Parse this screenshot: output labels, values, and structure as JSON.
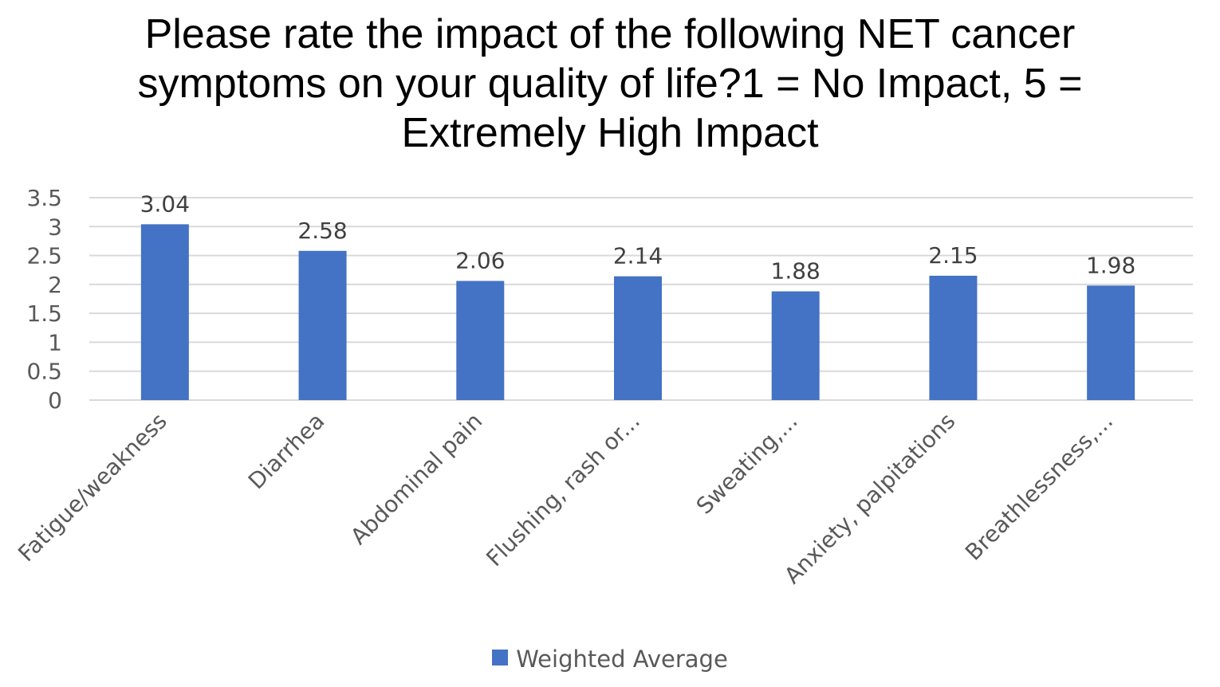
{
  "chart_data": {
    "type": "bar",
    "title": "Please rate the impact of the following NET cancer symptoms on your quality of life?1 = No Impact,  5 = Extremely High Impact",
    "categories": [
      "Fatigue/weakness",
      "Diarrhea",
      "Abdominal pain",
      "Flushing, rash or...",
      "Sweating,...",
      "Anxiety, palpitations",
      "Breathlessness,..."
    ],
    "series": [
      {
        "name": "Weighted Average",
        "values": [
          3.04,
          2.58,
          2.06,
          2.14,
          1.88,
          2.15,
          1.98
        ],
        "color": "#4472C4"
      }
    ],
    "data_labels": [
      "3.04",
      "2.58",
      "2.06",
      "2.14",
      "1.88",
      "2.15",
      "1.98"
    ],
    "y_ticks": [
      "0",
      "0.5",
      "1",
      "1.5",
      "2",
      "2.5",
      "3",
      "3.5"
    ],
    "ylim": [
      0,
      3.5
    ],
    "grid": true,
    "gridline_color": "#d9d9d9",
    "legend_position": "bottom"
  }
}
